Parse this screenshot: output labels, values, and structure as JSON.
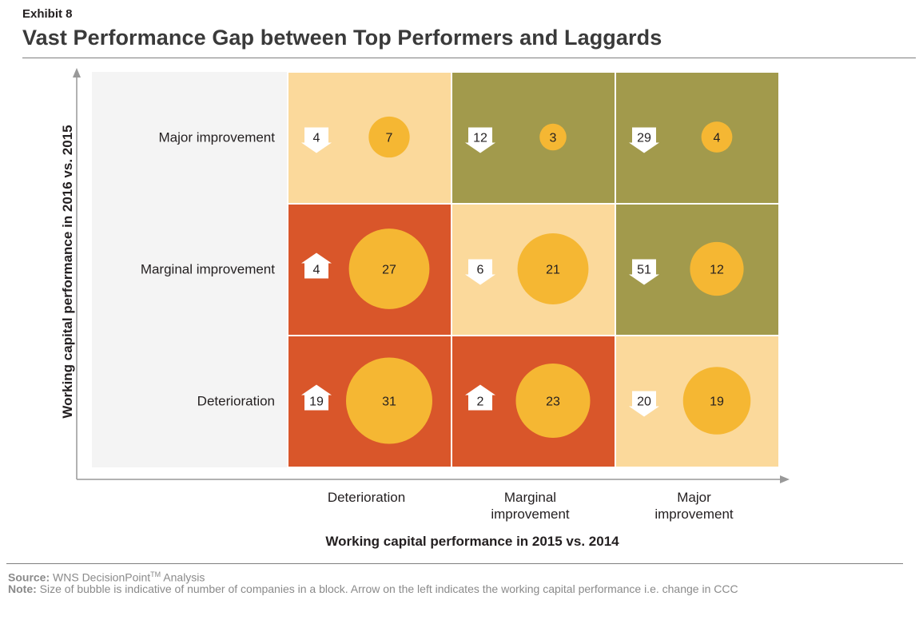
{
  "exhibit": "Exhibit 8",
  "title": "Vast Performance Gap between Top Performers and Laggards",
  "colors": {
    "light_orange": "#fbd99b",
    "olive": "#a29a4c",
    "red_orange": "#d9562a",
    "bubble": "#f5b733",
    "label_column": "#f4f4f4",
    "axis": "#999999"
  },
  "chart_data": {
    "type": "bubble-matrix",
    "xlabel": "Working capital performance in 2015 vs. 2014",
    "ylabel": "Working capital performance in 2016 vs. 2015",
    "x_categories": [
      "Deterioration",
      "Marginal improvement",
      "Major improvement"
    ],
    "x_category_lines": [
      [
        "Deterioration"
      ],
      [
        "Marginal",
        "improvement"
      ],
      [
        "Major",
        "improvement"
      ]
    ],
    "y_categories": [
      "Major improvement",
      "Marginal improvement",
      "Deterioration"
    ],
    "cells": [
      {
        "row": "Major improvement",
        "col": "Deterioration",
        "bubble": 7,
        "arrow": "down",
        "arrow_value": 4,
        "color": "light_orange"
      },
      {
        "row": "Major improvement",
        "col": "Marginal improvement",
        "bubble": 3,
        "arrow": "down",
        "arrow_value": 12,
        "color": "olive"
      },
      {
        "row": "Major improvement",
        "col": "Major improvement",
        "bubble": 4,
        "arrow": "down",
        "arrow_value": 29,
        "color": "olive"
      },
      {
        "row": "Marginal improvement",
        "col": "Deterioration",
        "bubble": 27,
        "arrow": "up",
        "arrow_value": 4,
        "color": "red_orange"
      },
      {
        "row": "Marginal improvement",
        "col": "Marginal improvement",
        "bubble": 21,
        "arrow": "down",
        "arrow_value": 6,
        "color": "light_orange"
      },
      {
        "row": "Marginal improvement",
        "col": "Major improvement",
        "bubble": 12,
        "arrow": "down",
        "arrow_value": 51,
        "color": "olive"
      },
      {
        "row": "Deterioration",
        "col": "Deterioration",
        "bubble": 31,
        "arrow": "up",
        "arrow_value": 19,
        "color": "red_orange"
      },
      {
        "row": "Deterioration",
        "col": "Marginal improvement",
        "bubble": 23,
        "arrow": "up",
        "arrow_value": 2,
        "color": "red_orange"
      },
      {
        "row": "Deterioration",
        "col": "Major improvement",
        "bubble": 19,
        "arrow": "down",
        "arrow_value": 20,
        "color": "light_orange"
      }
    ]
  },
  "footer": {
    "source_label": "Source:",
    "source_text": " WNS DecisionPoint",
    "source_tm": "TM",
    "source_suffix": " Analysis",
    "note_label": "Note:",
    "note_text": " Size of bubble is indicative of number of companies in a block. Arrow on the left indicates the working capital performance i.e. change in CCC"
  }
}
